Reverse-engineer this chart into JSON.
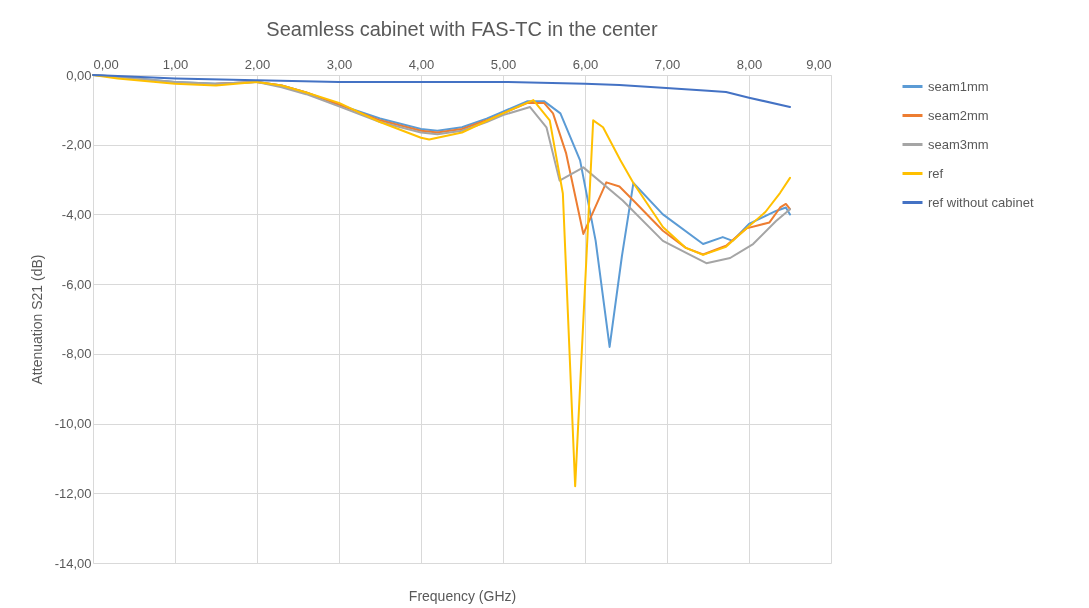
{
  "chart_data": {
    "type": "line",
    "title": "Seamless cabinet with FAS-TC in the center",
    "xlabel": "Frequency (GHz)",
    "ylabel": "Attenuation S21 (dB)",
    "xlim": [
      0,
      9
    ],
    "ylim": [
      -14,
      0
    ],
    "xticks": [
      {
        "value": 0,
        "label": "0,00"
      },
      {
        "value": 1,
        "label": "1,00"
      },
      {
        "value": 2,
        "label": "2,00"
      },
      {
        "value": 3,
        "label": "3,00"
      },
      {
        "value": 4,
        "label": "4,00"
      },
      {
        "value": 5,
        "label": "5,00"
      },
      {
        "value": 6,
        "label": "6,00"
      },
      {
        "value": 7,
        "label": "7,00"
      },
      {
        "value": 8,
        "label": "8,00"
      },
      {
        "value": 9,
        "label": "9,00"
      }
    ],
    "yticks": [
      {
        "value": 0,
        "label": "0,00"
      },
      {
        "value": -2,
        "label": "-2,00"
      },
      {
        "value": -4,
        "label": "-4,00"
      },
      {
        "value": -6,
        "label": "-6,00"
      },
      {
        "value": -8,
        "label": "-8,00"
      },
      {
        "value": -10,
        "label": "-10,00"
      },
      {
        "value": -12,
        "label": "-12,00"
      },
      {
        "value": -14,
        "label": "-14,00"
      }
    ],
    "grid": true,
    "legend": "right",
    "line_style": "solid",
    "marker": "none",
    "series": [
      {
        "name": "seam1mm",
        "color": "#5b9bd5",
        "x": [
          0,
          0.3,
          1,
          1.5,
          2,
          2.3,
          2.6,
          3,
          3.5,
          4,
          4.2,
          4.5,
          4.8,
          5,
          5.3,
          5.5,
          5.7,
          5.94,
          6.13,
          6.3,
          6.45,
          6.59,
          6.95,
          7.44,
          7.68,
          7.8,
          8,
          8.33,
          8.45,
          8.5
        ],
        "values": [
          0,
          -0.05,
          -0.2,
          -0.25,
          -0.2,
          -0.3,
          -0.5,
          -0.85,
          -1.25,
          -1.55,
          -1.6,
          -1.5,
          -1.25,
          -1.05,
          -0.75,
          -0.75,
          -1.1,
          -2.45,
          -4.76,
          -7.8,
          -5.2,
          -3.1,
          -4.0,
          -4.85,
          -4.65,
          -4.76,
          -4.27,
          -3.9,
          -3.8,
          -4.0
        ]
      },
      {
        "name": "seam2mm",
        "color": "#ed7d31",
        "x": [
          1.5,
          2,
          2.3,
          2.6,
          3,
          3.5,
          4,
          4.2,
          4.5,
          4.8,
          5,
          5.3,
          5.5,
          5.61,
          5.77,
          5.98,
          6.26,
          6.42,
          6.59,
          6.95,
          7.23,
          7.44,
          7.72,
          7.97,
          8.25,
          8.38,
          8.45,
          8.5
        ],
        "values": [
          -0.25,
          -0.2,
          -0.3,
          -0.5,
          -0.85,
          -1.3,
          -1.6,
          -1.65,
          -1.55,
          -1.3,
          -1.1,
          -0.8,
          -0.8,
          -1.1,
          -2.25,
          -4.56,
          -3.08,
          -3.2,
          -3.6,
          -4.47,
          -4.96,
          -5.15,
          -4.9,
          -4.4,
          -4.23,
          -3.8,
          -3.7,
          -3.85
        ]
      },
      {
        "name": "seam3mm",
        "color": "#a5a5a5",
        "x": [
          0,
          0.3,
          1,
          1.5,
          2,
          2.3,
          2.6,
          3,
          3.5,
          4,
          4.2,
          4.5,
          4.8,
          5,
          5.33,
          5.53,
          5.69,
          5.98,
          6.46,
          6.95,
          7.48,
          7.77,
          8.05,
          8.33,
          8.5
        ],
        "values": [
          0,
          -0.05,
          -0.2,
          -0.25,
          -0.2,
          -0.35,
          -0.55,
          -0.9,
          -1.35,
          -1.65,
          -1.7,
          -1.6,
          -1.35,
          -1.15,
          -0.92,
          -1.5,
          -3.03,
          -2.65,
          -3.6,
          -4.76,
          -5.4,
          -5.25,
          -4.85,
          -4.19,
          -3.85
        ]
      },
      {
        "name": "ref",
        "color": "#ffc000",
        "x": [
          0,
          0.3,
          1,
          1.5,
          2,
          2.3,
          2.6,
          3,
          3.5,
          4,
          4.1,
          4.5,
          5,
          5.37,
          5.57,
          5.73,
          5.88,
          6.1,
          6.22,
          6.43,
          6.59,
          6.95,
          7.23,
          7.44,
          7.72,
          7.97,
          8.2,
          8.38,
          8.5
        ],
        "values": [
          0,
          -0.1,
          -0.25,
          -0.3,
          -0.2,
          -0.3,
          -0.5,
          -0.8,
          -1.35,
          -1.8,
          -1.85,
          -1.65,
          -1.1,
          -0.72,
          -1.3,
          -3.4,
          -11.8,
          -1.3,
          -1.5,
          -2.44,
          -3.1,
          -4.36,
          -4.96,
          -5.16,
          -4.93,
          -4.4,
          -3.93,
          -3.38,
          -2.95
        ]
      },
      {
        "name": "ref without cabinet",
        "color": "#4472c4",
        "x": [
          0,
          0.3,
          1,
          2,
          3,
          4,
          5,
          6,
          6.42,
          6.99,
          7.5,
          7.72,
          8,
          8.5
        ],
        "values": [
          0,
          -0.03,
          -0.1,
          -0.15,
          -0.2,
          -0.2,
          -0.2,
          -0.25,
          -0.29,
          -0.37,
          -0.45,
          -0.49,
          -0.65,
          -0.92
        ]
      }
    ]
  }
}
